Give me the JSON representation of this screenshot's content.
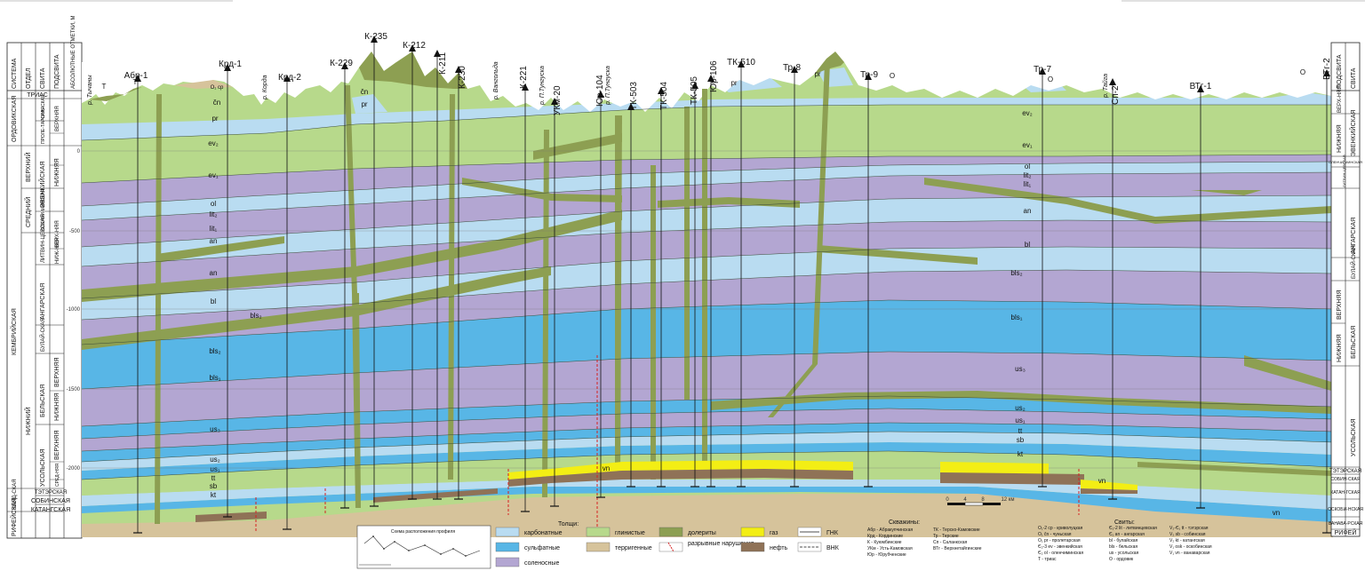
{
  "colors": {
    "carbonate": "#b9dcf1",
    "sulfate": "#58b6e6",
    "salt": "#b3a6d2",
    "clay": "#b7d98b",
    "terrigenous": "#d6c39b",
    "dolerite": "#8d9f52",
    "gas": "#f3ee14",
    "oil": "#8f7257"
  },
  "header": {
    "col_system": "СИСТЕМА",
    "col_series": "ОТДЕЛ",
    "col_formation": "СВИТА",
    "col_subformation": "ПОДСВИТА",
    "col_elev": "АБСОЛЮТНЫЕ ОТМЕТКИ, М",
    "right_subformation": "ПОДСВИТА",
    "right_formation": "СВИТА"
  },
  "left_column": {
    "systems": [
      "ТРИАС",
      "ОРДОВИКСКАЯ",
      "КЕМБРИЙСКАЯ",
      "РИФЕЙСКАЯ",
      "ВЕНД-СКАЯ"
    ],
    "series": [
      "ВЕРХНИЙ",
      "СРЕДНИЙ",
      "НИЖНИЙ"
    ],
    "formations": [
      "ЧУНЬ-СКАЯ",
      "ПРОЛЕ-ТАРСКАЯ",
      "ЭВЕНКИЙСКАЯ",
      "ОЛЕНЧИ-МИНСКАЯ",
      "ЛИТВИН-ЦЕВСКАЯ",
      "АНГАРСКАЯ",
      "БУЛАЙ-СКАЯ",
      "БЕЛЬСКАЯ",
      "УСОЛЬСКАЯ",
      "ТЭТЭРСКАЯ",
      "СОБИНСКАЯ",
      "КАТАНГСКАЯ"
    ],
    "subformations": [
      "ВЕРХНЯЯ",
      "НИЖНЯЯ",
      "ВЕРХ-НЯЯ",
      "НИЖ-НЯЯ",
      "ВЕРХНЯЯ",
      "НИЖНЯЯ",
      "ВЕРХНЯЯ",
      "СРЕД-НЯЯ"
    ],
    "elevations": [
      "0",
      "-500",
      "-1000",
      "-1500",
      "-2000"
    ]
  },
  "right_column": {
    "formations": [
      "ВЕРХ-НЯЯ",
      "НИЖНЯЯ",
      "ЭВЕНКИЙСКАЯ",
      "ОЛЕНЧИ-МИНСКАЯ",
      "ЛИТВИН-ЦЕВСКАЯ",
      "АНГАРСКАЯ",
      "БУЛАЙ-СКАЯ",
      "ВЕРХНЯЯ",
      "НИЖНЯЯ",
      "БЕЛЬСКАЯ",
      "УСОЛЬСКАЯ",
      "ТЭТЭРСКАЯ",
      "СОБИН-СКАЯ",
      "КАТАН-ГСКАЯ",
      "ОСКОБИ-НСКАЯ",
      "ВАНАВА-РСКАЯ",
      "РИФЕЙ"
    ]
  },
  "wells": [
    "Абр-1",
    "Крд-1",
    "Крд-2",
    "К-229",
    "К-235",
    "К-212",
    "К-211",
    "К-230",
    "К-221",
    "УКм-20",
    "Юр-104",
    "ТК-503",
    "ТК-504",
    "ТК-505",
    "Юр-106",
    "ТК-510",
    "Тр-8",
    "Тр-9",
    "Тр-7",
    "Сп-2",
    "ВТг-1",
    "ВТг-2"
  ],
  "rivers": [
    "р. Тычаны",
    "р. Корда",
    "р. Вангольда",
    "р. П.Тунгуска",
    "р. П.Тунгуска",
    "р. Тайга"
  ],
  "formation_labels_left": [
    "pr",
    "ev₂",
    "ev₁",
    "ol",
    "lit₂",
    "lit₁",
    "an",
    "an",
    "bl",
    "bls₂",
    "bls₂",
    "bls₁",
    "us₃",
    "us₂",
    "us₁",
    "tt",
    "sb",
    "kt",
    "O₁ cp",
    "T",
    "T"
  ],
  "formation_labels_mid": [
    "čn",
    "čn",
    "pr",
    "pr",
    "pr",
    "vn"
  ],
  "formation_labels_right": [
    "ev₂",
    "ev₁",
    "ol",
    "lit₂",
    "lit₁",
    "an",
    "bl",
    "bls₂",
    "bls₁",
    "us₃",
    "us₂",
    "us₁",
    "tt",
    "sb",
    "kt",
    "vn",
    "vn",
    "O",
    "O",
    "O"
  ],
  "scale": {
    "ticks": [
      "0",
      "4",
      "8",
      "12 км"
    ]
  },
  "inset": {
    "title": "Схема расположения профиля"
  },
  "legend": {
    "title_rocks": "Толщи:",
    "rocks": [
      "карбонатные",
      "сульфатные",
      "соленосные",
      "глинистые",
      "терригенные",
      "долериты",
      "разрывные нарушения",
      "газ",
      "нефть"
    ],
    "contacts": [
      "ГНК",
      "ВНК"
    ],
    "wells_title": "Скважины:",
    "wells_col1": [
      "Абр - Абракупчинская",
      "Крд - Кординские",
      "К - Куюмбинские",
      "УКм - Усть-Камовская",
      "Юр - Юрубченские"
    ],
    "wells_col2": [
      "ТК - Терско-Камовские",
      "Тр - Терские",
      "Сп - Саланкская",
      "ВТг - Верхнетайгинские"
    ],
    "suites_title": "Свиты:",
    "suites_col1": [
      "O₁-2 cp - криволуцкая",
      "O₁ čn - чуньская",
      "O₁ pr - пролетарская",
      "Є₂-3 ev - эвенкийская",
      "Є₂ ol - оленчиминская",
      "T - триас"
    ],
    "suites_col2": [
      "Є₁-2 lit - литвинцевская",
      "Є₁ an - ангарская",
      "bl - булайская",
      "bls - бельская",
      "us - усольская",
      "O - ордовик"
    ],
    "suites_col3": [
      "V₂-Є₁ tt - тэтэрская",
      "V₂ sb - собинская",
      "V₂ kt - катангская",
      "V₁ osk - оскобинская",
      "V₁ vn - ванаварская"
    ]
  }
}
